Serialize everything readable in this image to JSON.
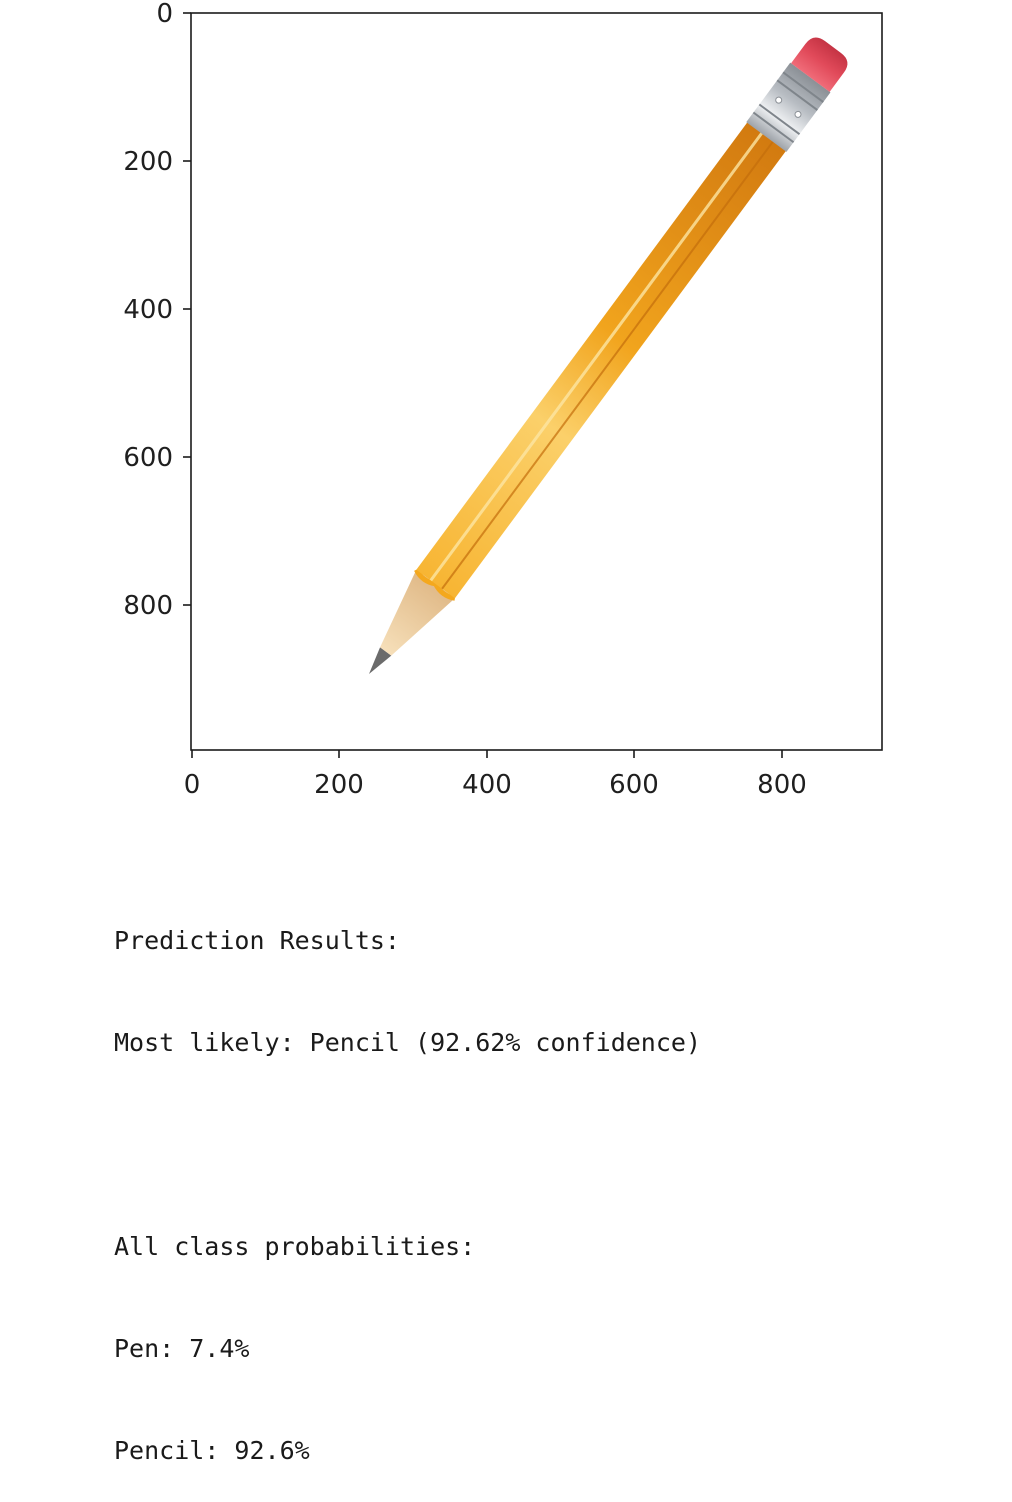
{
  "figure": {
    "image_content": "pencil-photo",
    "x_ticks": [
      "0",
      "200",
      "400",
      "600",
      "800"
    ],
    "y_ticks": [
      "0",
      "200",
      "400",
      "600",
      "800"
    ],
    "x_range": [
      0,
      939
    ],
    "y_range": [
      999,
      0
    ],
    "colors": {
      "pencil_body": "#f4a81d",
      "pencil_shade": "#d77f12",
      "pencil_highlight": "#fbd16a",
      "eraser": "#e14a5a",
      "ferrule": "#c9ccd1",
      "wood": "#f1d4a6",
      "lead": "#6b6b6b"
    }
  },
  "output": {
    "header": "Prediction Results:",
    "most_likely": "Most likely: Pencil (92.62% confidence)",
    "probabilities_header": "All class probabilities:",
    "probabilities": [
      "Pen: 7.4%",
      "Pencil: 92.6%"
    ]
  }
}
